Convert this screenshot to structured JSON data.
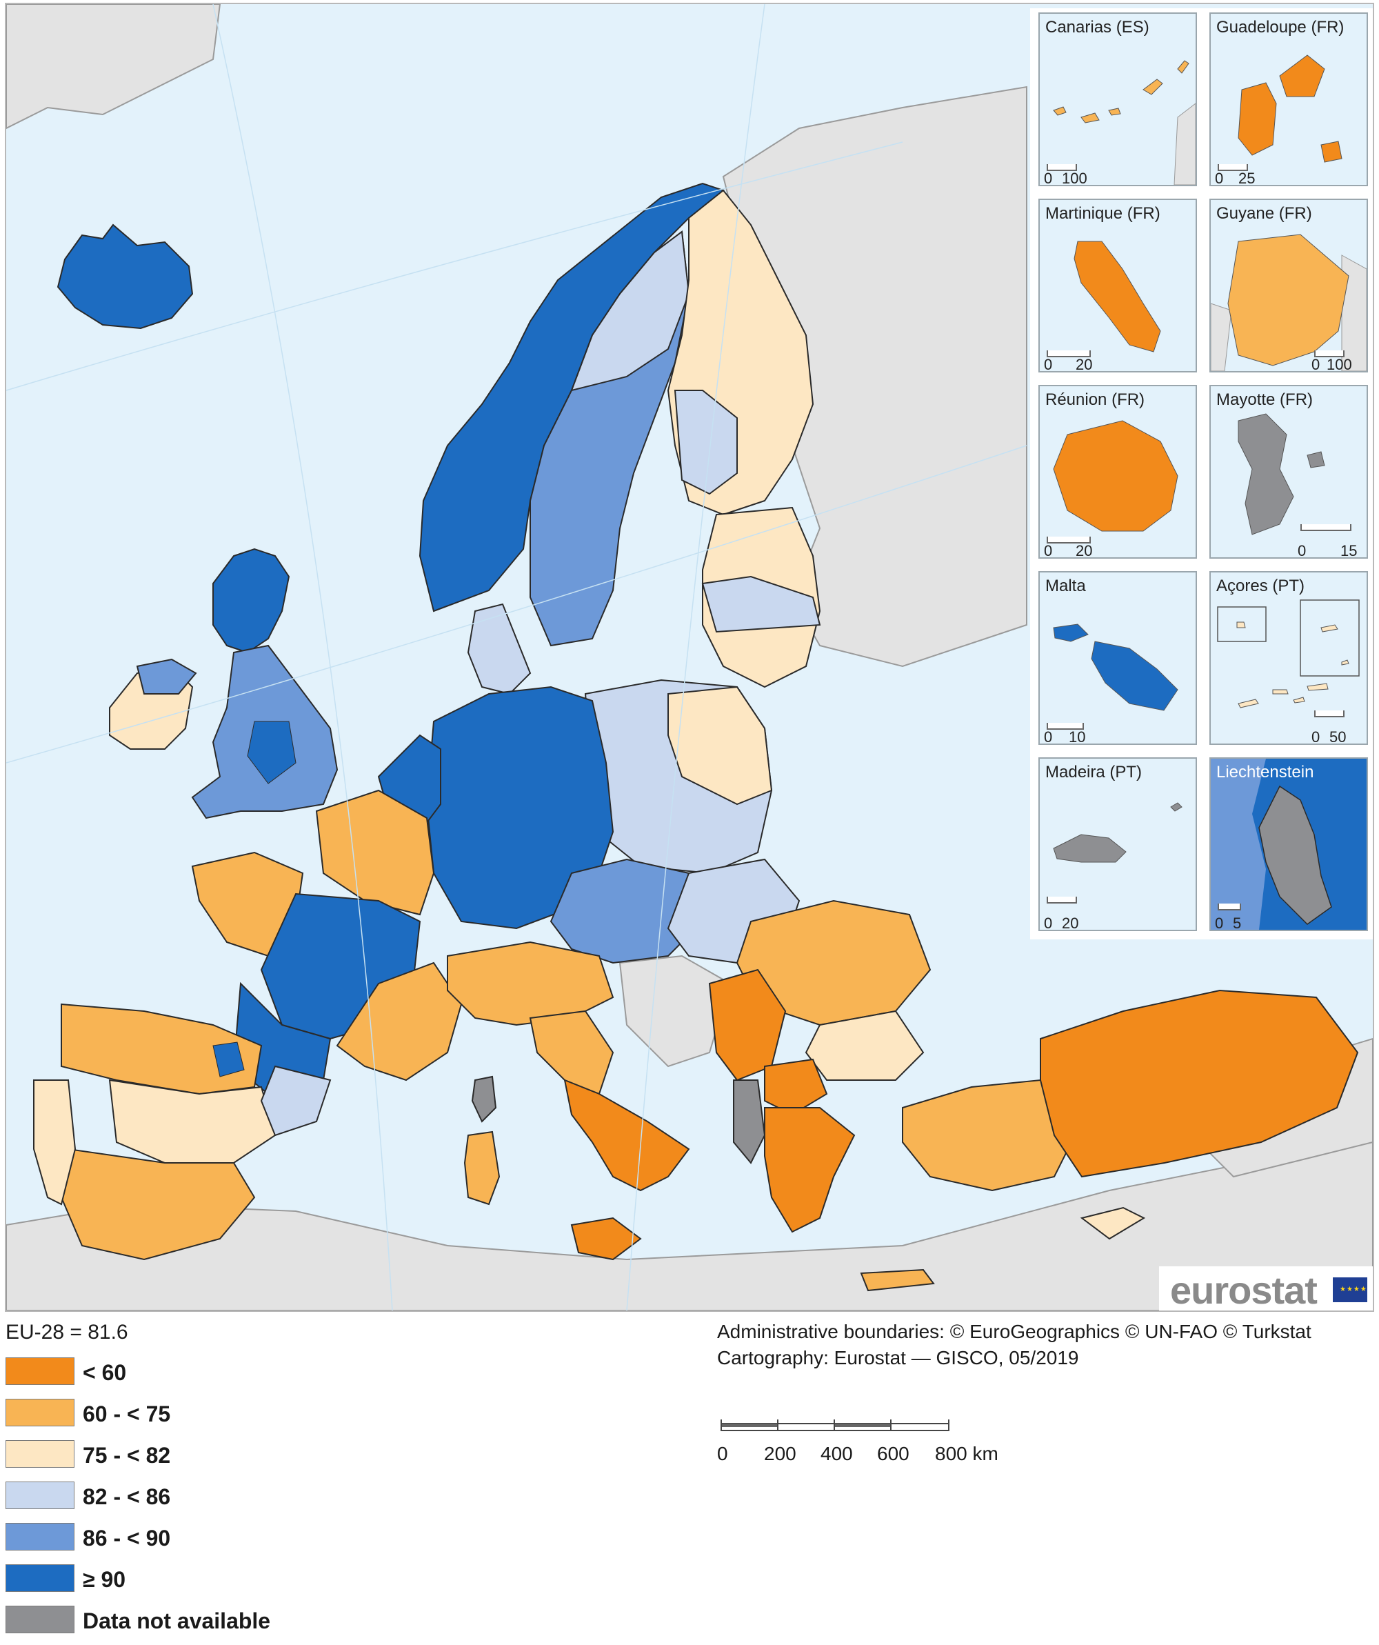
{
  "map": {
    "legend_title": "EU-28 = 81.6",
    "legend": [
      {
        "label": "< 60",
        "color": "#f28a1b"
      },
      {
        "label": "60 - < 75",
        "color": "#f8b454"
      },
      {
        "label": "75 - < 82",
        "color": "#fde7c3"
      },
      {
        "label": "82 - < 86",
        "color": "#c9d8ef"
      },
      {
        "label": "86 - < 90",
        "color": "#6d99d8"
      },
      {
        "label": "≥ 90",
        "color": "#1d6cc1"
      },
      {
        "label": "Data not available",
        "color": "#8e8f92"
      }
    ],
    "colors": {
      "sea": "#e3f2fb",
      "non_eu_land": "#e3e3e3",
      "border": "#2a2a2a"
    },
    "regions": [
      {
        "name": "Iceland",
        "class": "≥ 90"
      },
      {
        "name": "Norway",
        "class": "≥ 90"
      },
      {
        "name": "Sweden",
        "class": "86 - < 90"
      },
      {
        "name": "Finland",
        "class": "75 - < 82"
      },
      {
        "name": "Baltic states",
        "class": "75 - < 82"
      },
      {
        "name": "Poland",
        "class": "82 - < 86"
      },
      {
        "name": "Germany",
        "class": "≥ 90"
      },
      {
        "name": "Benelux",
        "class": "≥ 90"
      },
      {
        "name": "France",
        "class": "≥ 90"
      },
      {
        "name": "United Kingdom",
        "class": "86 - < 90"
      },
      {
        "name": "Ireland",
        "class": "75 - < 82"
      },
      {
        "name": "Spain",
        "class": "60 - < 75"
      },
      {
        "name": "Portugal",
        "class": "75 - < 82"
      },
      {
        "name": "Italy (north)",
        "class": "60 - < 75"
      },
      {
        "name": "Italy (south)",
        "class": "< 60"
      },
      {
        "name": "Czechia / Austria",
        "class": "86 - < 90"
      },
      {
        "name": "Hungary / Slovakia",
        "class": "82 - < 86"
      },
      {
        "name": "Romania / Bulgaria",
        "class": "60 - < 75"
      },
      {
        "name": "Greece",
        "class": "< 60"
      },
      {
        "name": "North Macedonia / Montenegro",
        "class": "< 60"
      },
      {
        "name": "Albania",
        "class": "Data not available"
      },
      {
        "name": "Turkey",
        "class": "< 60"
      },
      {
        "name": "Corsica",
        "class": "Data not available"
      }
    ],
    "insets": [
      {
        "title": "Canarias (ES)",
        "scale": [
          "0",
          "100"
        ]
      },
      {
        "title": "Guadeloupe (FR)",
        "scale": [
          "0",
          "25"
        ]
      },
      {
        "title": "Martinique (FR)",
        "scale": [
          "0",
          "20"
        ]
      },
      {
        "title": "Guyane (FR)",
        "scale": [
          "0",
          "100"
        ]
      },
      {
        "title": "Réunion (FR)",
        "scale": [
          "0",
          "20"
        ]
      },
      {
        "title": "Mayotte (FR)",
        "scale": [
          "0",
          "15"
        ]
      },
      {
        "title": "Malta",
        "scale": [
          "0",
          "10"
        ]
      },
      {
        "title": "Açores (PT)",
        "scale": [
          "0",
          "50"
        ]
      },
      {
        "title": "Madeira (PT)",
        "scale": [
          "0",
          "20"
        ]
      },
      {
        "title": "Liechtenstein",
        "scale": [
          "0",
          "5"
        ]
      }
    ],
    "credits": {
      "line1": "Administrative boundaries: © EuroGeographics © UN-FAO © Turkstat",
      "line2": "Cartography: Eurostat — GISCO, 05/2019"
    },
    "scale_bar": {
      "ticks": [
        "0",
        "200",
        "400",
        "600",
        "800 km"
      ]
    },
    "logo": "eurostat"
  }
}
